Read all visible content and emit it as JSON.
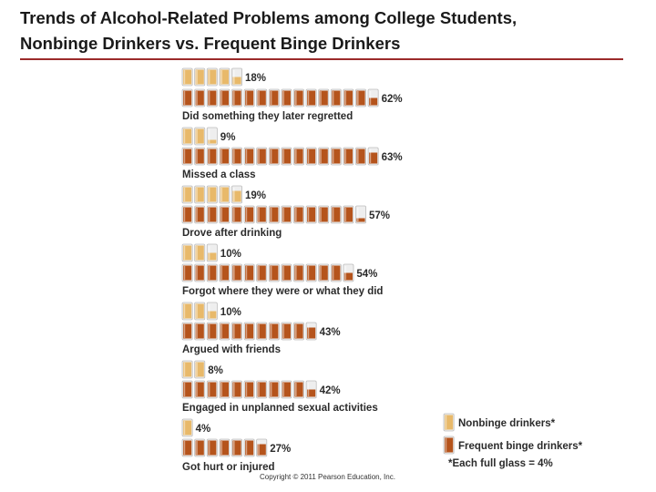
{
  "title_line1": "Trends of Alcohol-Related Problems among College Students,",
  "title_line2": "Nonbinge Drinkers vs. Frequent Binge Drinkers",
  "copyright": "Copyright © 2011 Pearson Education, Inc.",
  "colors": {
    "nonbinge": "#e8b96a",
    "binge": "#b5541c",
    "rule": "#9b2a2a"
  },
  "chart_data": {
    "type": "bar",
    "categories": [
      "Did something they later regretted",
      "Missed a class",
      "Drove after drinking",
      "Forgot where they were or what they did",
      "Argued with friends",
      "Engaged in unplanned sexual activities",
      "Got hurt or injured"
    ],
    "series": [
      {
        "name": "Nonbinge drinkers*",
        "values": [
          18,
          9,
          19,
          10,
          10,
          8,
          4
        ]
      },
      {
        "name": "Frequent binge drinkers*",
        "values": [
          62,
          63,
          57,
          54,
          43,
          42,
          27
        ]
      }
    ],
    "unit_note": "*Each full glass = 4%",
    "glass_value": 4,
    "value_suffix": "%"
  }
}
